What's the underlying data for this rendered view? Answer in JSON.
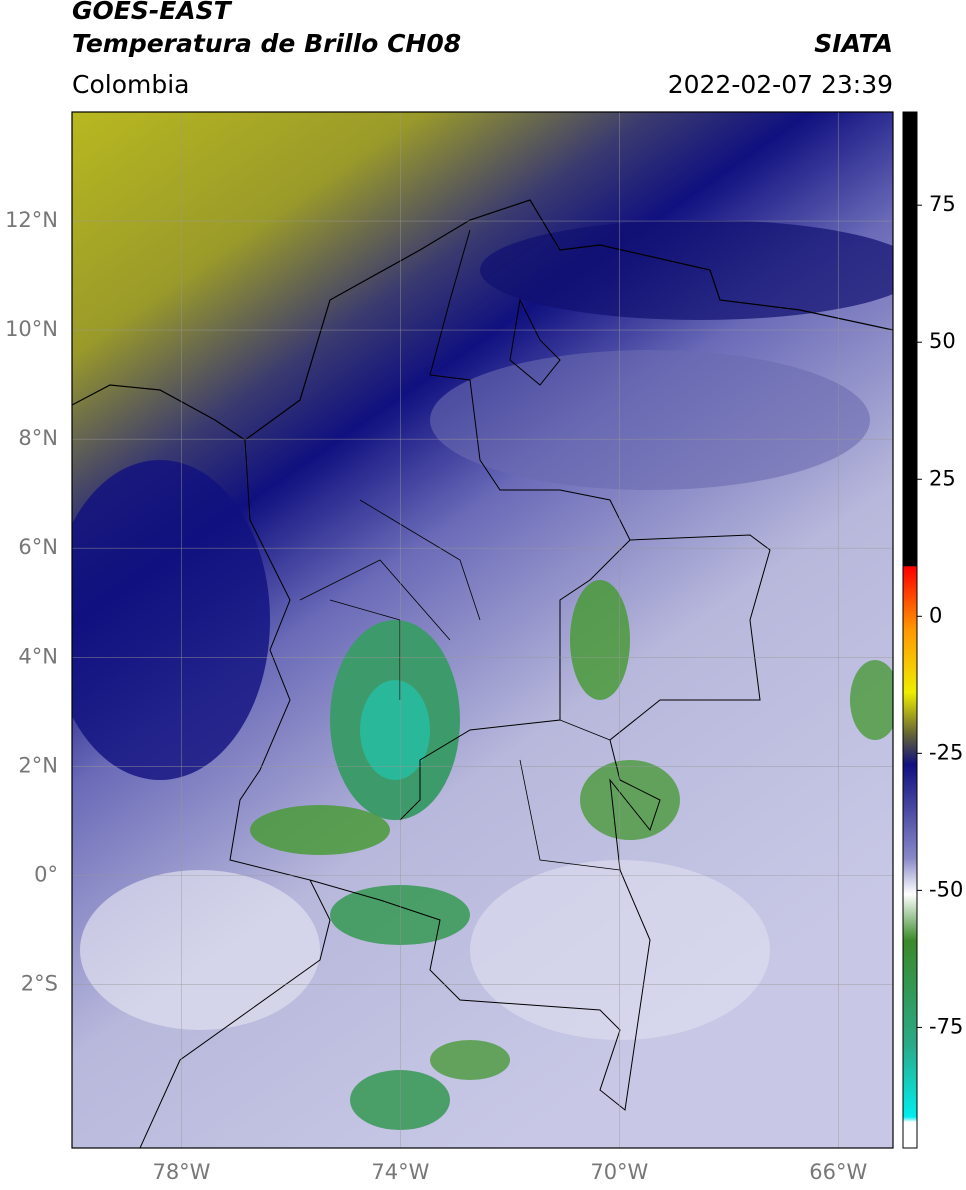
{
  "header": {
    "title": "GOES-EAST",
    "subtitle": "Temperatura de Brillo CH08",
    "source": "SIATA",
    "region": "Colombia",
    "datetime": "2022-02-07 23:39"
  },
  "map": {
    "lonlim": [
      -80,
      -65
    ],
    "latlim": [
      -5,
      14
    ],
    "lon_ticks": [
      {
        "value": -78,
        "label": "78°W"
      },
      {
        "value": -74,
        "label": "74°W"
      },
      {
        "value": -70,
        "label": "70°W"
      },
      {
        "value": -66,
        "label": "66°W"
      }
    ],
    "lat_ticks": [
      {
        "value": 12,
        "label": "12°N"
      },
      {
        "value": 10,
        "label": "10°N"
      },
      {
        "value": 8,
        "label": "8°N"
      },
      {
        "value": 6,
        "label": "6°N"
      },
      {
        "value": 4,
        "label": "4°N"
      },
      {
        "value": 2,
        "label": "2°N"
      },
      {
        "value": 0,
        "label": "0°"
      },
      {
        "value": -2,
        "label": "2°S"
      }
    ]
  },
  "colorbar": {
    "lim": [
      -97,
      92
    ],
    "ticks": [
      75,
      50,
      25,
      0,
      -25,
      -50,
      -75
    ]
  }
}
